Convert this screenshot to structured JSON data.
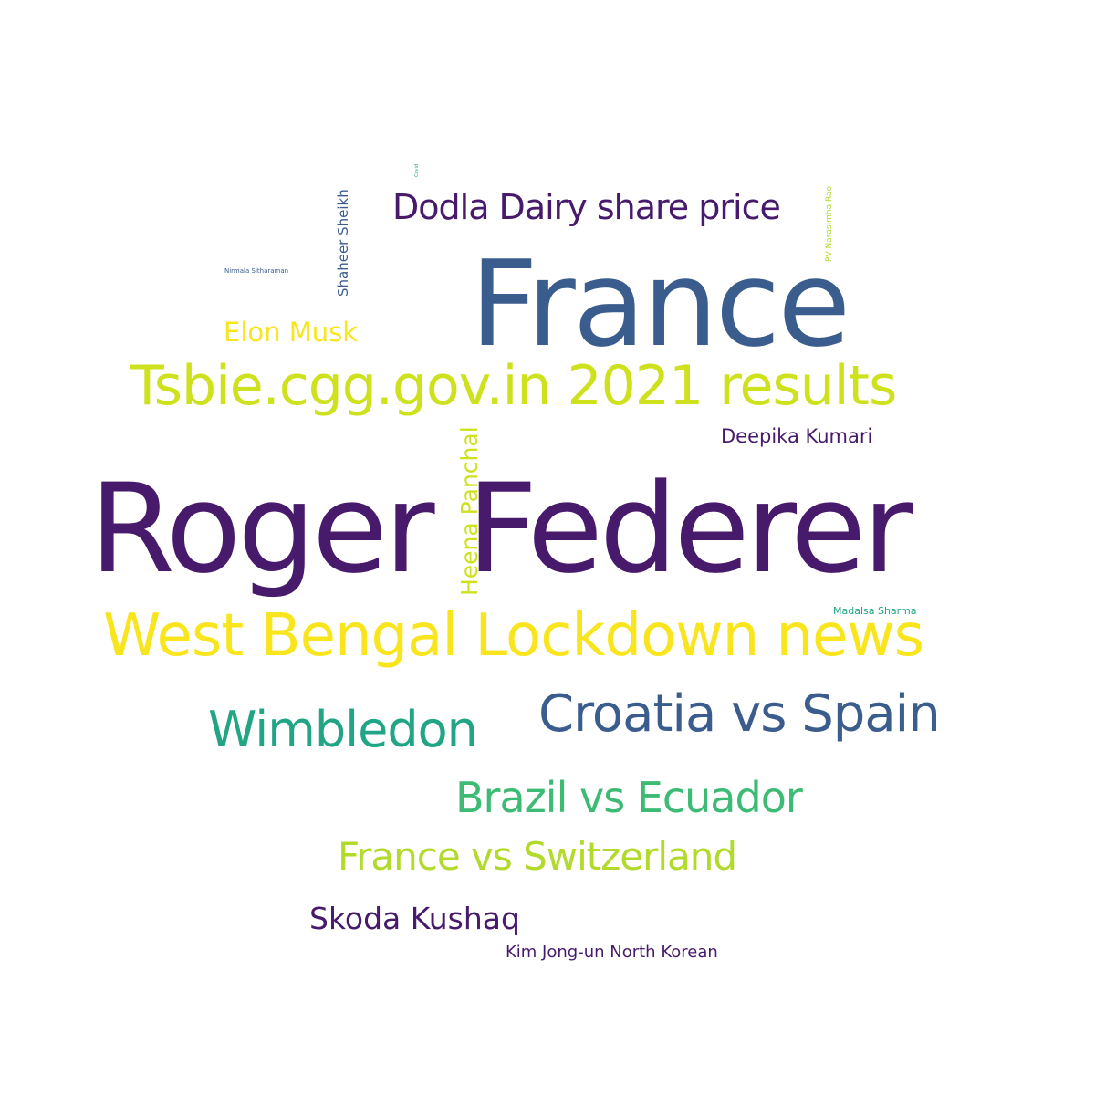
{
  "colors": {
    "background": "#ffffff",
    "deep_purple": "#481a6c",
    "steel_blue": "#3b5d8d",
    "teal": "#21a585",
    "green": "#3dbb74",
    "light_green": "#a2d63a",
    "lime": "#cde11d",
    "yellow": "#f9e51d"
  },
  "words": {
    "roger_federer": {
      "text": "Roger Federer",
      "color": "#481a6c"
    },
    "france": {
      "text": "France",
      "color": "#3b5d8d"
    },
    "west_bengal": {
      "text": "West Bengal Lockdown news",
      "color": "#f9e51d"
    },
    "tsbie": {
      "text": "Tsbie.cgg.gov.in 2021 results",
      "color": "#cde11d"
    },
    "croatia_spain": {
      "text": "Croatia vs Spain",
      "color": "#3b5d8d"
    },
    "wimbledon": {
      "text": "Wimbledon",
      "color": "#21a585"
    },
    "brazil_ecuador": {
      "text": "Brazil vs Ecuador",
      "color": "#3dbb74"
    },
    "france_switzerland": {
      "text": "France vs Switzerland",
      "color": "#b2da2b"
    },
    "dodla": {
      "text": "Dodla Dairy share price",
      "color": "#481a6c"
    },
    "skoda": {
      "text": "Skoda Kushaq",
      "color": "#481a6c"
    },
    "elon": {
      "text": "Elon Musk",
      "color": "#f9e51d"
    },
    "deepika": {
      "text": "Deepika Kumari",
      "color": "#481a6c"
    },
    "kim": {
      "text": "Kim Jong-un North Korean",
      "color": "#481a6c"
    },
    "madalsa": {
      "text": "Madalsa Sharma",
      "color": "#21a585"
    },
    "nirmala": {
      "text": "Nirmala Sitharaman",
      "color": "#3b5d8d"
    },
    "heena": {
      "text": "Heena Panchal",
      "color": "#cde11d"
    },
    "shaheer": {
      "text": "Shaheer Sheikh",
      "color": "#3b5d8d"
    },
    "pv": {
      "text": "PV Narasimha Rao",
      "color": "#b2da2b"
    },
    "covid": {
      "text": "Covid",
      "color": "#21a585"
    }
  }
}
